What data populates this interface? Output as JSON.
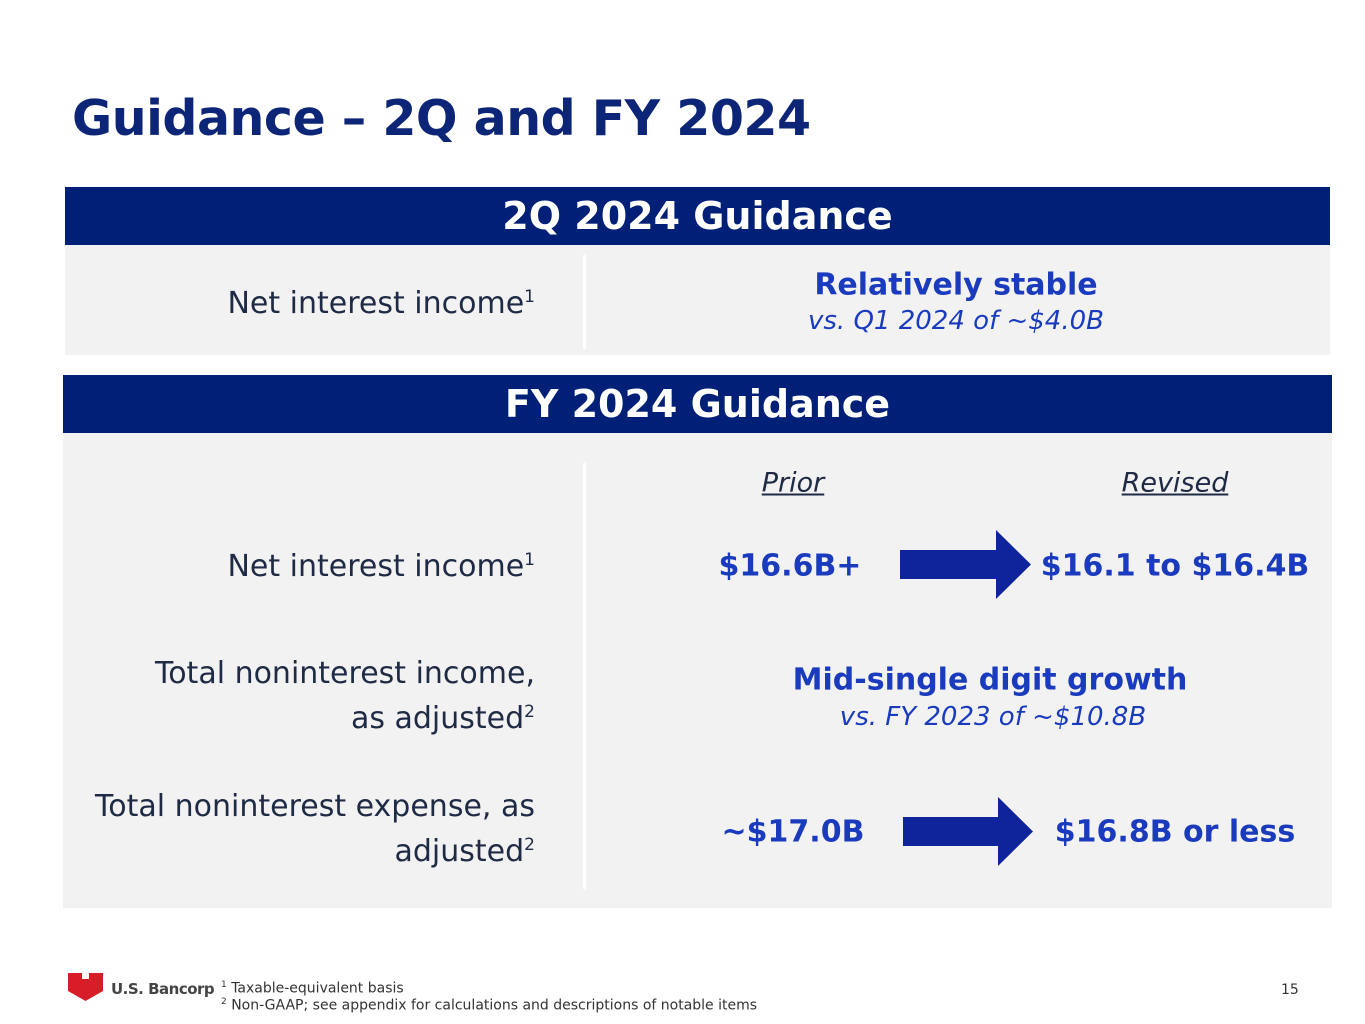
{
  "header": {
    "title": "Guidance – 2Q and FY 2024"
  },
  "sections": [
    {
      "title": "2Q 2024 Guidance",
      "rows": [
        {
          "label": [
            "Net interest income"
          ],
          "note": "1",
          "value": "Relatively stable",
          "detail": "vs. Q1 2024 of ~$4.0B"
        }
      ]
    },
    {
      "title": "FY 2024 Guidance",
      "columns": [
        "Prior",
        "Revised"
      ],
      "rows": [
        {
          "label": [
            "Net interest income"
          ],
          "note": "1",
          "prior": "$16.6B+",
          "revised": "$16.1 to $16.4B"
        },
        {
          "label": [
            "Total noninterest income,",
            "as adjusted"
          ],
          "note": "2",
          "value": "Mid-single digit growth",
          "detail": "vs. FY 2023 of ~$10.8B"
        },
        {
          "label": [
            "Total noninterest expense, as",
            "adjusted"
          ],
          "note": "2",
          "prior": "~$17.0B",
          "revised": "$16.8B or less"
        }
      ]
    }
  ],
  "footer": {
    "logo": "U.S. Bancorp",
    "footnotes": [
      {
        "mark": "1",
        "text": "Taxable-equivalent basis"
      },
      {
        "mark": "2",
        "text": "Non-GAAP; see appendix for calculations and descriptions of notable items"
      }
    ],
    "page": "15"
  }
}
